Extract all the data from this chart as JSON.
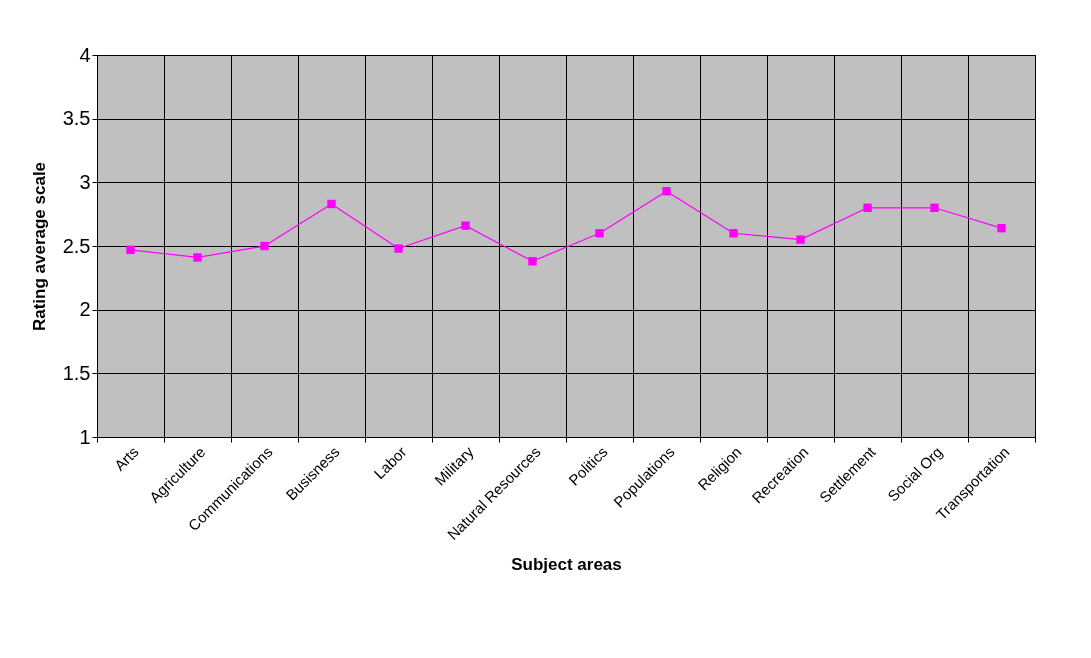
{
  "chart_data": {
    "type": "line",
    "xlabel": "Subject areas",
    "ylabel": "Rating average scale",
    "categories": [
      "Arts",
      "Agriculture",
      "Communications",
      "Busisness",
      "Labor",
      "Military",
      "Natural Resources",
      "Politics",
      "Populations",
      "Religion",
      "Recreation",
      "Settlement",
      "Social Org",
      "Transportation"
    ],
    "series": [
      {
        "color": "#ff00ff",
        "values": [
          2.47,
          2.41,
          2.5,
          2.83,
          2.48,
          2.66,
          2.38,
          2.6,
          2.93,
          2.6,
          2.55,
          2.8,
          2.8,
          2.64
        ]
      }
    ],
    "ylim": [
      1,
      4
    ],
    "yticks": [
      1,
      1.5,
      2,
      2.5,
      3,
      3.5,
      4
    ],
    "grid": true,
    "marker": "square",
    "line_style": "solid"
  }
}
